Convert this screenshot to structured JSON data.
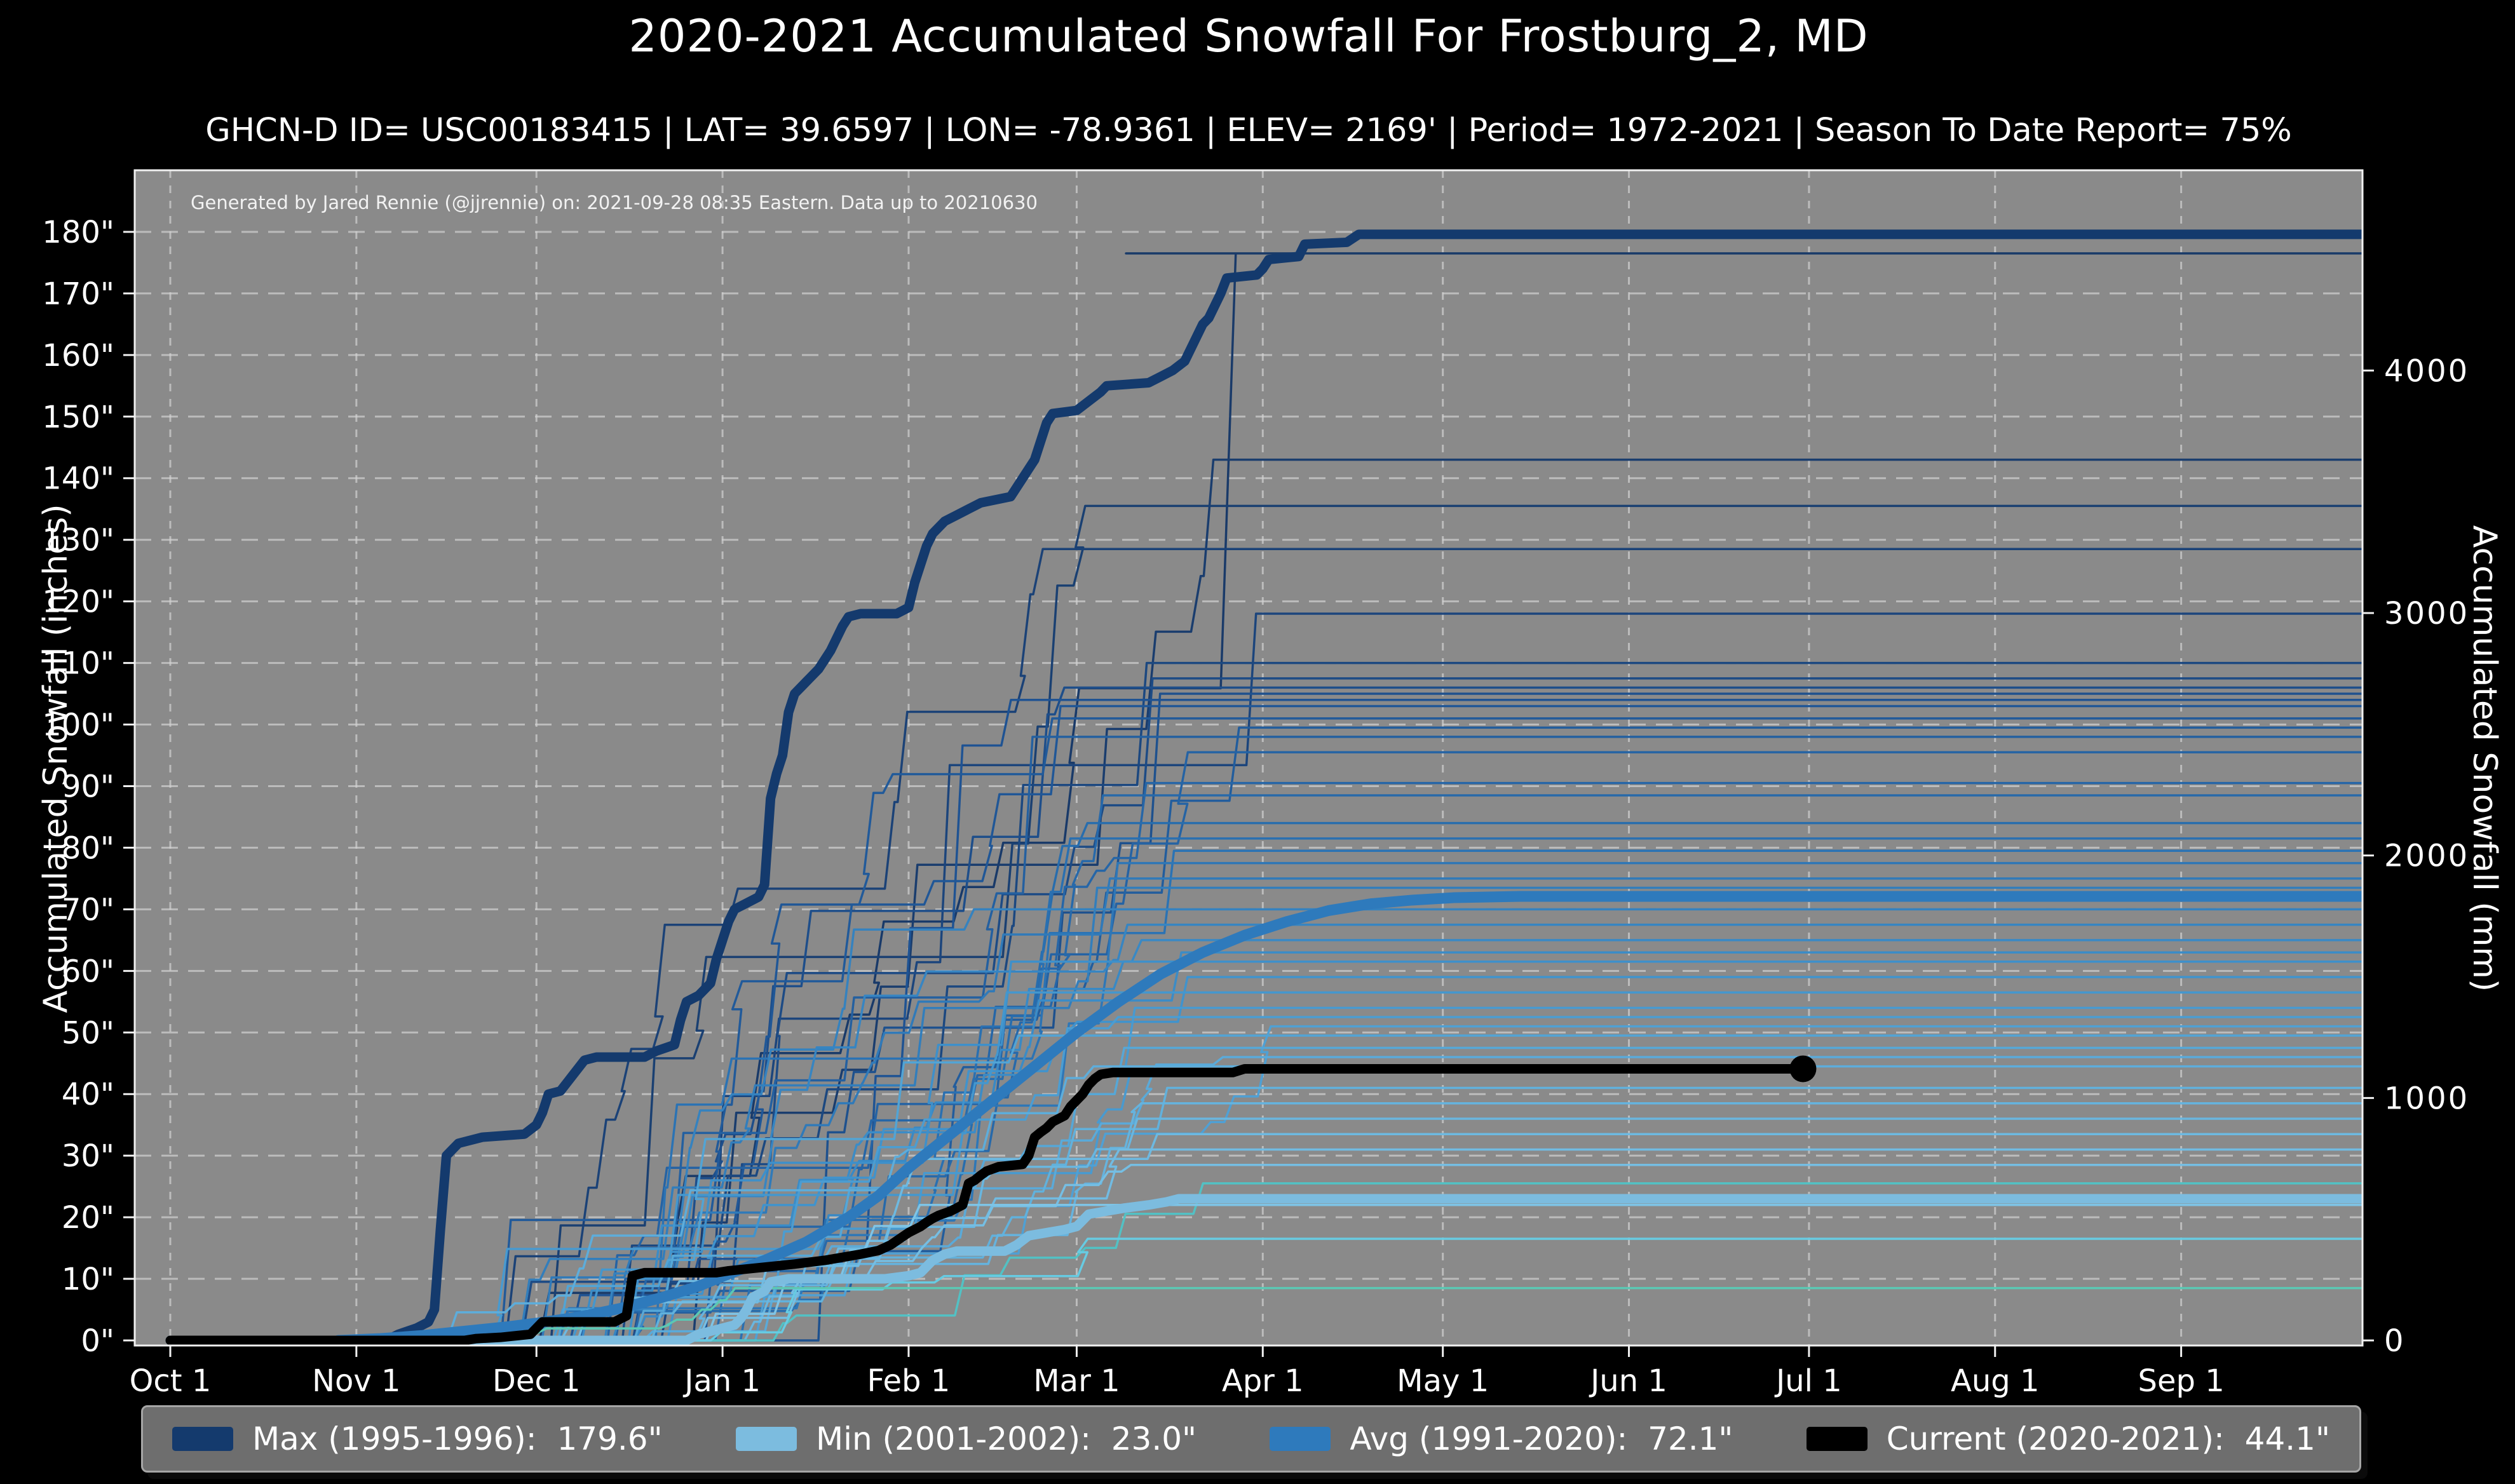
{
  "title": "2020-2021 Accumulated Snowfall For Frostburg_2, MD",
  "subtitle": "GHCN-D ID= USC00183415 | LAT= 39.6597 | LON= -78.9361 | ELEV= 2169' | Period= 1972-2021 | Season To Date Report= 75%",
  "note": "Generated by Jared Rennie (@jjrennie) on: 2021-09-28 08:35 Eastern. Data up to 20210630",
  "colors": {
    "figure_background": "#000000",
    "plot_background": "#8a8a8a",
    "gridline": "#d2d2d2",
    "spine": "#f0f0f0",
    "text": "#ffffff",
    "max_line": "#143a6d",
    "min_line": "#7cbcdf",
    "avg_line": "#2e7abc",
    "current_line": "#000000",
    "season_color_stops": [
      "#193a69",
      "#1f5494",
      "#2a71b2",
      "#3f92cc",
      "#60b0dc",
      "#86c9e9"
    ]
  },
  "legend": {
    "entries": [
      {
        "label": "Max (1995-1996):  179.6\"",
        "color": "#143a6d"
      },
      {
        "label": "Min (2001-2002):  23.0\"",
        "color": "#7cbcdf"
      },
      {
        "label": "Avg (1991-2020):  72.1\"",
        "color": "#2e7abc"
      },
      {
        "label": "Current (2020-2021):  44.1\"",
        "color": "#000000"
      }
    ]
  },
  "chart_data": {
    "type": "line",
    "title": "2020-2021 Accumulated Snowfall For Frostburg_2, MD",
    "xlabel": "",
    "grid": true,
    "legend_position": "bottom",
    "x_axis": {
      "tick_labels": [
        "Oct 1",
        "Nov 1",
        "Dec 1",
        "Jan 1",
        "Feb 1",
        "Mar 1",
        "Apr 1",
        "May 1",
        "Jun 1",
        "Jul 1",
        "Aug 1",
        "Sep 1"
      ],
      "tick_days": [
        0,
        31,
        61,
        92,
        123,
        151,
        182,
        212,
        243,
        273,
        304,
        335
      ],
      "range_days": [
        0,
        365
      ]
    },
    "y_axis_left": {
      "label": "Accumulated Snowfall (inches)",
      "tick_labels": [
        "0\"",
        "10\"",
        "20\"",
        "30\"",
        "40\"",
        "50\"",
        "60\"",
        "70\"",
        "80\"",
        "90\"",
        "100\"",
        "110\"",
        "120\"",
        "130\"",
        "140\"",
        "150\"",
        "160\"",
        "170\"",
        "180\""
      ],
      "tick_values": [
        0,
        10,
        20,
        30,
        40,
        50,
        60,
        70,
        80,
        90,
        100,
        110,
        120,
        130,
        140,
        150,
        160,
        170,
        180
      ],
      "range": [
        0,
        190
      ]
    },
    "y_axis_right": {
      "label": "Accumulated Snowfall (mm)",
      "tick_labels": [
        "0",
        "1000",
        "2000",
        "3000",
        "4000"
      ],
      "tick_values_mm": [
        0,
        1000,
        2000,
        3000,
        4000
      ],
      "mm_per_inch": 25.4
    },
    "series": [
      {
        "name": "Max (1995-1996)",
        "total_in": 179.6,
        "color": "#143a6d",
        "width": 15,
        "points": [
          [
            0,
            0
          ],
          [
            36,
            0
          ],
          [
            38,
            1
          ],
          [
            41,
            2
          ],
          [
            43,
            3
          ],
          [
            44,
            5
          ],
          [
            45,
            18
          ],
          [
            46,
            30
          ],
          [
            48,
            32
          ],
          [
            52,
            33
          ],
          [
            59,
            33.5
          ],
          [
            61,
            35
          ],
          [
            62,
            37
          ],
          [
            63,
            40
          ],
          [
            65,
            40.5
          ],
          [
            67,
            43
          ],
          [
            69,
            45.5
          ],
          [
            71,
            46
          ],
          [
            79,
            46
          ],
          [
            81,
            47
          ],
          [
            84,
            48
          ],
          [
            85,
            52
          ],
          [
            86,
            55
          ],
          [
            88,
            56
          ],
          [
            90,
            58
          ],
          [
            91,
            62
          ],
          [
            92,
            65
          ],
          [
            93,
            68
          ],
          [
            94,
            70
          ],
          [
            96,
            71
          ],
          [
            98,
            72
          ],
          [
            99,
            74
          ],
          [
            100,
            88
          ],
          [
            101,
            92
          ],
          [
            102,
            95
          ],
          [
            103,
            102
          ],
          [
            104,
            105
          ],
          [
            106,
            107
          ],
          [
            108,
            109
          ],
          [
            110,
            112
          ],
          [
            112,
            116
          ],
          [
            113,
            117.5
          ],
          [
            115,
            118
          ],
          [
            121,
            118
          ],
          [
            123,
            119
          ],
          [
            124,
            123
          ],
          [
            125,
            126
          ],
          [
            126,
            129
          ],
          [
            127,
            131
          ],
          [
            129,
            133
          ],
          [
            131,
            134
          ],
          [
            133,
            135
          ],
          [
            135,
            136
          ],
          [
            140,
            137
          ],
          [
            142,
            140
          ],
          [
            143,
            141.5
          ],
          [
            144,
            143
          ],
          [
            145,
            146
          ],
          [
            146,
            149
          ],
          [
            147,
            150.5
          ],
          [
            151,
            151
          ],
          [
            153,
            152.5
          ],
          [
            155,
            154
          ],
          [
            156,
            155
          ],
          [
            163,
            155.5
          ],
          [
            165,
            156.5
          ],
          [
            167,
            157.5
          ],
          [
            169,
            159
          ],
          [
            170,
            161
          ],
          [
            171,
            163
          ],
          [
            172,
            165
          ],
          [
            173,
            166
          ],
          [
            174,
            168
          ],
          [
            175,
            170
          ],
          [
            176,
            172.5
          ],
          [
            181,
            173
          ],
          [
            182,
            174
          ],
          [
            183,
            175.5
          ],
          [
            188,
            176
          ],
          [
            189,
            178
          ],
          [
            196,
            178.3
          ],
          [
            198,
            179.6
          ],
          [
            365,
            179.6
          ]
        ]
      },
      {
        "name": "Min (2001-2002)",
        "total_in": 23.0,
        "color": "#7cbcdf",
        "width": 15,
        "points": [
          [
            0,
            0
          ],
          [
            86,
            0
          ],
          [
            88,
            1
          ],
          [
            90,
            1.5
          ],
          [
            92,
            2
          ],
          [
            94,
            2.5
          ],
          [
            95,
            3.5
          ],
          [
            96,
            5
          ],
          [
            97,
            7
          ],
          [
            99,
            8
          ],
          [
            100,
            9.5
          ],
          [
            103,
            10
          ],
          [
            119,
            10
          ],
          [
            123,
            10.5
          ],
          [
            125,
            11
          ],
          [
            126,
            12
          ],
          [
            127,
            13
          ],
          [
            129,
            14
          ],
          [
            131,
            14.5
          ],
          [
            139,
            14.5
          ],
          [
            141,
            15.5
          ],
          [
            143,
            17
          ],
          [
            146,
            17.5
          ],
          [
            149,
            18
          ],
          [
            151,
            18.5
          ],
          [
            152,
            19.5
          ],
          [
            153,
            20.5
          ],
          [
            156,
            21
          ],
          [
            159,
            21.5
          ],
          [
            163,
            22
          ],
          [
            166,
            22.5
          ],
          [
            168,
            23
          ],
          [
            365,
            23
          ]
        ]
      },
      {
        "name": "Avg (1991-2020)",
        "total_in": 72.1,
        "color": "#2e7abc",
        "width": 17,
        "points": [
          [
            28,
            0
          ],
          [
            35,
            0.3
          ],
          [
            42,
            0.8
          ],
          [
            49,
            1.5
          ],
          [
            56,
            2.2
          ],
          [
            61,
            2.8
          ],
          [
            68,
            3.8
          ],
          [
            75,
            5.2
          ],
          [
            82,
            7
          ],
          [
            88,
            8.8
          ],
          [
            92,
            10.4
          ],
          [
            99,
            13
          ],
          [
            106,
            16
          ],
          [
            113,
            20
          ],
          [
            118,
            23.5
          ],
          [
            123,
            28
          ],
          [
            130,
            33.5
          ],
          [
            137,
            39
          ],
          [
            144,
            44.5
          ],
          [
            151,
            50
          ],
          [
            158,
            55
          ],
          [
            165,
            59.5
          ],
          [
            172,
            63
          ],
          [
            179,
            65.8
          ],
          [
            186,
            68
          ],
          [
            193,
            69.8
          ],
          [
            200,
            70.9
          ],
          [
            207,
            71.5
          ],
          [
            214,
            71.9
          ],
          [
            225,
            72.1
          ],
          [
            365,
            72.1
          ]
        ]
      },
      {
        "name": "Current (2020-2021)",
        "total_in": 44.1,
        "color": "#000000",
        "width": 15,
        "end_marker": [
          272,
          44.1
        ],
        "points": [
          [
            0,
            0
          ],
          [
            49,
            0
          ],
          [
            51,
            0.3
          ],
          [
            55,
            0.5
          ],
          [
            58,
            0.8
          ],
          [
            60,
            1
          ],
          [
            61,
            2
          ],
          [
            62,
            3
          ],
          [
            74,
            3
          ],
          [
            75,
            3.5
          ],
          [
            76,
            4
          ],
          [
            77,
            10.5
          ],
          [
            79,
            11
          ],
          [
            91,
            11
          ],
          [
            93,
            11.3
          ],
          [
            96,
            11.6
          ],
          [
            100,
            12
          ],
          [
            104,
            12.4
          ],
          [
            109,
            13
          ],
          [
            112,
            13.5
          ],
          [
            115,
            14
          ],
          [
            118,
            14.6
          ],
          [
            120,
            15.5
          ],
          [
            123,
            17.5
          ],
          [
            125,
            18.5
          ],
          [
            126,
            19.2
          ],
          [
            127,
            19.8
          ],
          [
            128,
            20.3
          ],
          [
            130,
            21
          ],
          [
            132,
            22
          ],
          [
            133,
            25.5
          ],
          [
            134,
            26
          ],
          [
            135,
            26.8
          ],
          [
            136,
            27.5
          ],
          [
            138,
            28.2
          ],
          [
            142,
            28.6
          ],
          [
            143,
            30
          ],
          [
            144,
            33
          ],
          [
            145,
            33.8
          ],
          [
            146,
            34.5
          ],
          [
            147,
            35.5
          ],
          [
            149,
            36.5
          ],
          [
            150,
            38
          ],
          [
            152,
            40
          ],
          [
            153,
            41.5
          ],
          [
            154,
            42.5
          ],
          [
            155,
            43.2
          ],
          [
            157,
            43.5
          ],
          [
            177,
            43.5
          ],
          [
            179,
            44.1
          ],
          [
            272,
            44.1
          ]
        ]
      }
    ],
    "background_seasons": {
      "description": "Thin lines: each 1972-2021 season accumulated snowfall, approximate season totals in inches read from right-edge plateaus",
      "line_width": 3.5,
      "seasons": [
        {
          "final_in": 176.5,
          "late_jump_day": 175,
          "late_jump_frac": 0.4
        },
        {
          "final_in": 143
        },
        {
          "final_in": 135.5
        },
        {
          "final_in": 128.5
        },
        {
          "final_in": 118
        },
        {
          "final_in": 110
        },
        {
          "final_in": 107.5
        },
        {
          "final_in": 106
        },
        {
          "final_in": 105
        },
        {
          "final_in": 104
        },
        {
          "final_in": 103
        },
        {
          "final_in": 101
        },
        {
          "final_in": 99.5
        },
        {
          "final_in": 98
        },
        {
          "final_in": 95.5
        },
        {
          "final_in": 90.5
        },
        {
          "final_in": 88.5
        },
        {
          "final_in": 84
        },
        {
          "final_in": 81.5
        },
        {
          "final_in": 79.5
        },
        {
          "final_in": 77.5
        },
        {
          "final_in": 75
        },
        {
          "final_in": 73.5
        },
        {
          "final_in": 70
        },
        {
          "final_in": 67.5
        },
        {
          "final_in": 65
        },
        {
          "final_in": 63
        },
        {
          "final_in": 61.5
        },
        {
          "final_in": 59
        },
        {
          "final_in": 56.5
        },
        {
          "final_in": 54
        },
        {
          "final_in": 52.5
        },
        {
          "final_in": 51
        },
        {
          "final_in": 49.5
        },
        {
          "final_in": 47.5
        },
        {
          "final_in": 46
        },
        {
          "final_in": 44.5
        },
        {
          "final_in": 41
        },
        {
          "final_in": 38.5
        },
        {
          "final_in": 36
        },
        {
          "final_in": 33.5
        },
        {
          "final_in": 31
        },
        {
          "final_in": 28.5
        },
        {
          "final_in": 25.5,
          "color": "#52c1c4"
        },
        {
          "final_in": 22
        },
        {
          "final_in": 16.5,
          "color": "#67cbe2"
        },
        {
          "final_in": 8.5,
          "color": "#5bc8b4",
          "start_day": 28,
          "end_day": 100
        }
      ]
    }
  }
}
